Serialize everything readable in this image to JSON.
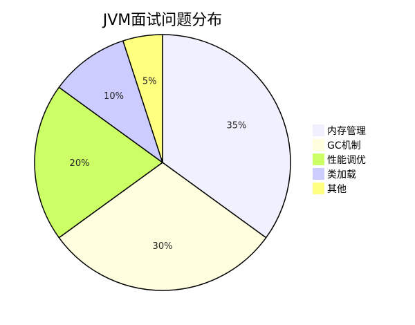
{
  "chart_data": {
    "type": "pie",
    "title": "JVM面试问题分布",
    "categories": [
      "内存管理",
      "GC机制",
      "性能调优",
      "类加载",
      "其他"
    ],
    "values": [
      35,
      30,
      20,
      10,
      5
    ],
    "labels": [
      "35%",
      "30%",
      "20%",
      "10%",
      "5%"
    ],
    "colors": [
      "#f0f0ff",
      "#ffffe0",
      "#ccff66",
      "#ccccff",
      "#ffff80"
    ],
    "legend": "right",
    "start_angle": "12 o'clock",
    "direction": "clockwise"
  }
}
